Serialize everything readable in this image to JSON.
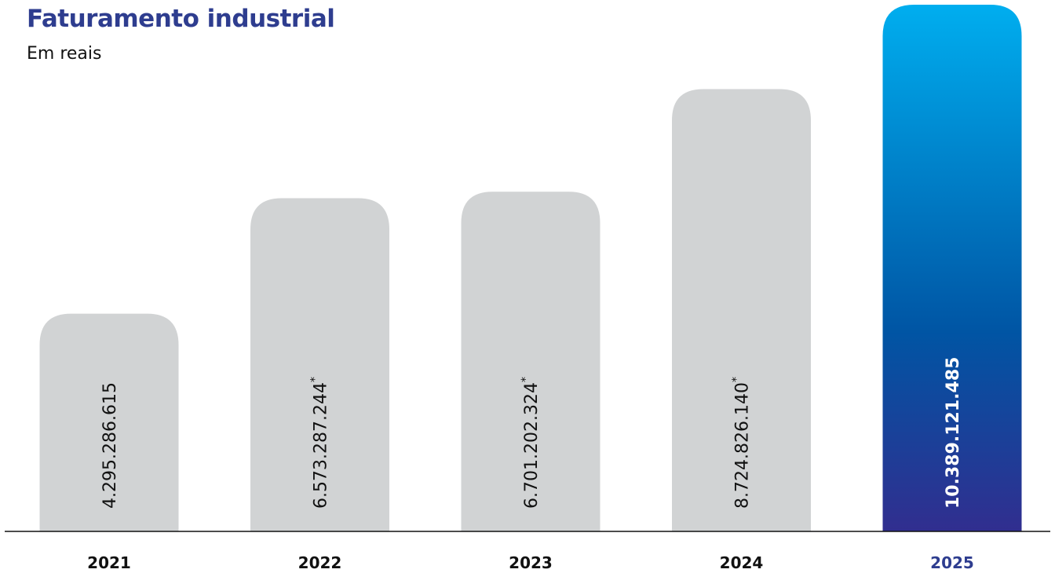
{
  "chart_data": {
    "type": "bar",
    "title": "Faturamento industrial",
    "subtitle": "Em reais",
    "categories": [
      "2021",
      "2022",
      "2023",
      "2024",
      "2025"
    ],
    "values": [
      4295286615,
      6573287244,
      6701202324,
      8724826140,
      10389121485
    ],
    "value_labels": [
      "4.295.286.615",
      "6.573.287.244",
      "6.701.202.324",
      "8.724.826.140",
      "10.389.121.485"
    ],
    "footnote_marks": [
      "",
      "*",
      "*",
      "*",
      ""
    ],
    "highlighted_category": "2025",
    "ylim": [
      0,
      10389121485
    ],
    "grid": false,
    "legend": "none"
  },
  "colors": {
    "title": "#2e3d8f",
    "bar_default": "#d1d3d4",
    "bar_highlight_top": "#00aeef",
    "bar_highlight_mid": "#0055a4",
    "bar_highlight_bottom": "#312e8f",
    "baseline": "#111111"
  }
}
